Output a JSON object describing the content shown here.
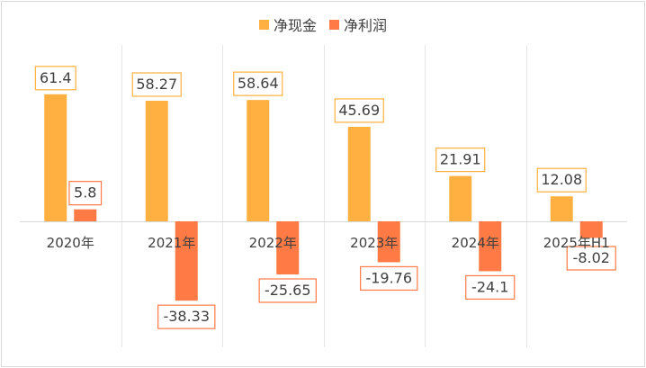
{
  "chart_data": {
    "type": "bar",
    "categories": [
      "2020年",
      "2021年",
      "2022年",
      "2023年",
      "2024年",
      "2025年H1"
    ],
    "series": [
      {
        "name": "净现金",
        "values": [
          61.4,
          58.27,
          58.64,
          45.69,
          21.91,
          12.08
        ],
        "labels": [
          "61.4",
          "58.27",
          "58.64",
          "45.69",
          "21.91",
          "12.08"
        ],
        "color": "#FFB041"
      },
      {
        "name": "净利润",
        "values": [
          5.8,
          -38.33,
          -25.65,
          -19.76,
          -24.1,
          -8.02
        ],
        "labels": [
          "5.8",
          "-38.33",
          "-25.65",
          "-19.76",
          "-24.1",
          "-8.02"
        ],
        "color": "#FF7A45"
      }
    ],
    "title": "",
    "xlabel": "",
    "ylabel": "",
    "grid": "vertical category separators",
    "legend": "top-center",
    "data_labels": "boxed"
  }
}
